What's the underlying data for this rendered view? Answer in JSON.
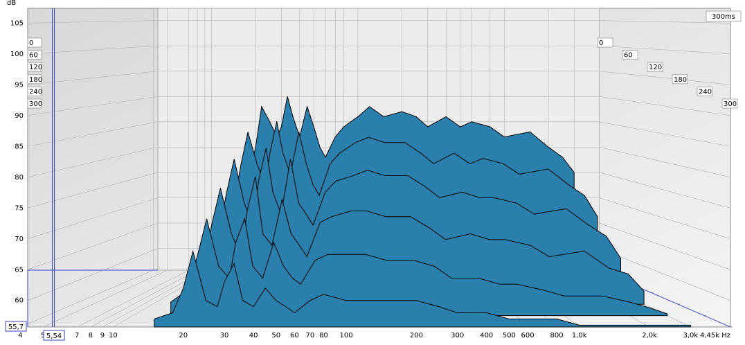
{
  "chart_data": {
    "type": "waterfall",
    "y_label": "dB",
    "time_label": "300ms",
    "xlog": true,
    "xlim": [
      4.3,
      4450
    ],
    "ylim": [
      55.7,
      107.4
    ],
    "zlim": [
      0,
      300
    ],
    "yticks": [
      60,
      65,
      70,
      75,
      80,
      85,
      90,
      95,
      100,
      105
    ],
    "zticks": [
      0,
      60,
      120,
      180,
      240,
      300
    ],
    "xticks": [
      4,
      5,
      7,
      8,
      9,
      10,
      20,
      30,
      40,
      50,
      60,
      70,
      80,
      100,
      200,
      300,
      400,
      500,
      600,
      800,
      {
        "value": 1000,
        "label": "1,0k"
      },
      {
        "value": 2000,
        "label": "2,0k"
      },
      {
        "value": 3000,
        "label": "3,0k"
      },
      {
        "value": 4450,
        "label": "4,45k Hz"
      }
    ],
    "cursor": {
      "x": {
        "value": 5.54,
        "label": "5,54"
      },
      "y": {
        "value": 55.7,
        "label": "55,7"
      }
    },
    "color": "#2b7fad",
    "x": [
      15,
      18,
      20,
      22,
      25,
      28,
      30,
      33,
      36,
      40,
      45,
      50,
      55,
      60,
      70,
      80,
      100,
      120,
      150,
      200,
      250,
      300,
      400,
      500,
      600,
      800,
      1000,
      1500,
      2000,
      2500,
      3000
    ],
    "series": [
      {
        "values": [
          70,
          74,
          80,
          88,
          85,
          82,
          84,
          90,
          86,
          82,
          88,
          84,
          80,
          78,
          82,
          84,
          86,
          88,
          86,
          87,
          86,
          84,
          86,
          84,
          85,
          84,
          82,
          83,
          80,
          78,
          75
        ]
      },
      {
        "values": [
          65,
          70,
          78,
          84,
          78,
          74,
          80,
          86,
          80,
          76,
          84,
          78,
          74,
          72,
          78,
          80,
          82,
          83,
          82,
          82,
          80,
          78,
          80,
          78,
          79,
          78,
          76,
          77,
          74,
          72,
          68
        ]
      },
      {
        "values": [
          62,
          66,
          74,
          80,
          72,
          68,
          76,
          82,
          74,
          70,
          80,
          72,
          70,
          68,
          74,
          76,
          77,
          78,
          77,
          77,
          75,
          73,
          74,
          73,
          73,
          72,
          70,
          71,
          68,
          66,
          62
        ]
      },
      {
        "values": [
          60,
          62,
          70,
          76,
          68,
          64,
          72,
          78,
          68,
          66,
          74,
          68,
          66,
          64,
          70,
          71,
          72,
          72,
          71,
          71,
          69,
          67,
          68,
          67,
          67,
          66,
          64,
          65,
          62,
          61,
          58
        ]
      },
      {
        "values": [
          58,
          60,
          66,
          72,
          64,
          62,
          68,
          72,
          64,
          62,
          68,
          64,
          62,
          61,
          65,
          66,
          66,
          66,
          65,
          65,
          64,
          62,
          62,
          61,
          61,
          60,
          59,
          59,
          58,
          57,
          56
        ]
      },
      {
        "values": [
          57,
          58,
          62,
          68,
          60,
          59,
          63,
          66,
          60,
          59,
          62,
          60,
          59,
          58,
          60,
          61,
          60,
          60,
          60,
          60,
          59,
          58,
          58,
          57,
          57,
          57,
          56,
          56,
          56,
          56,
          56
        ]
      }
    ]
  }
}
